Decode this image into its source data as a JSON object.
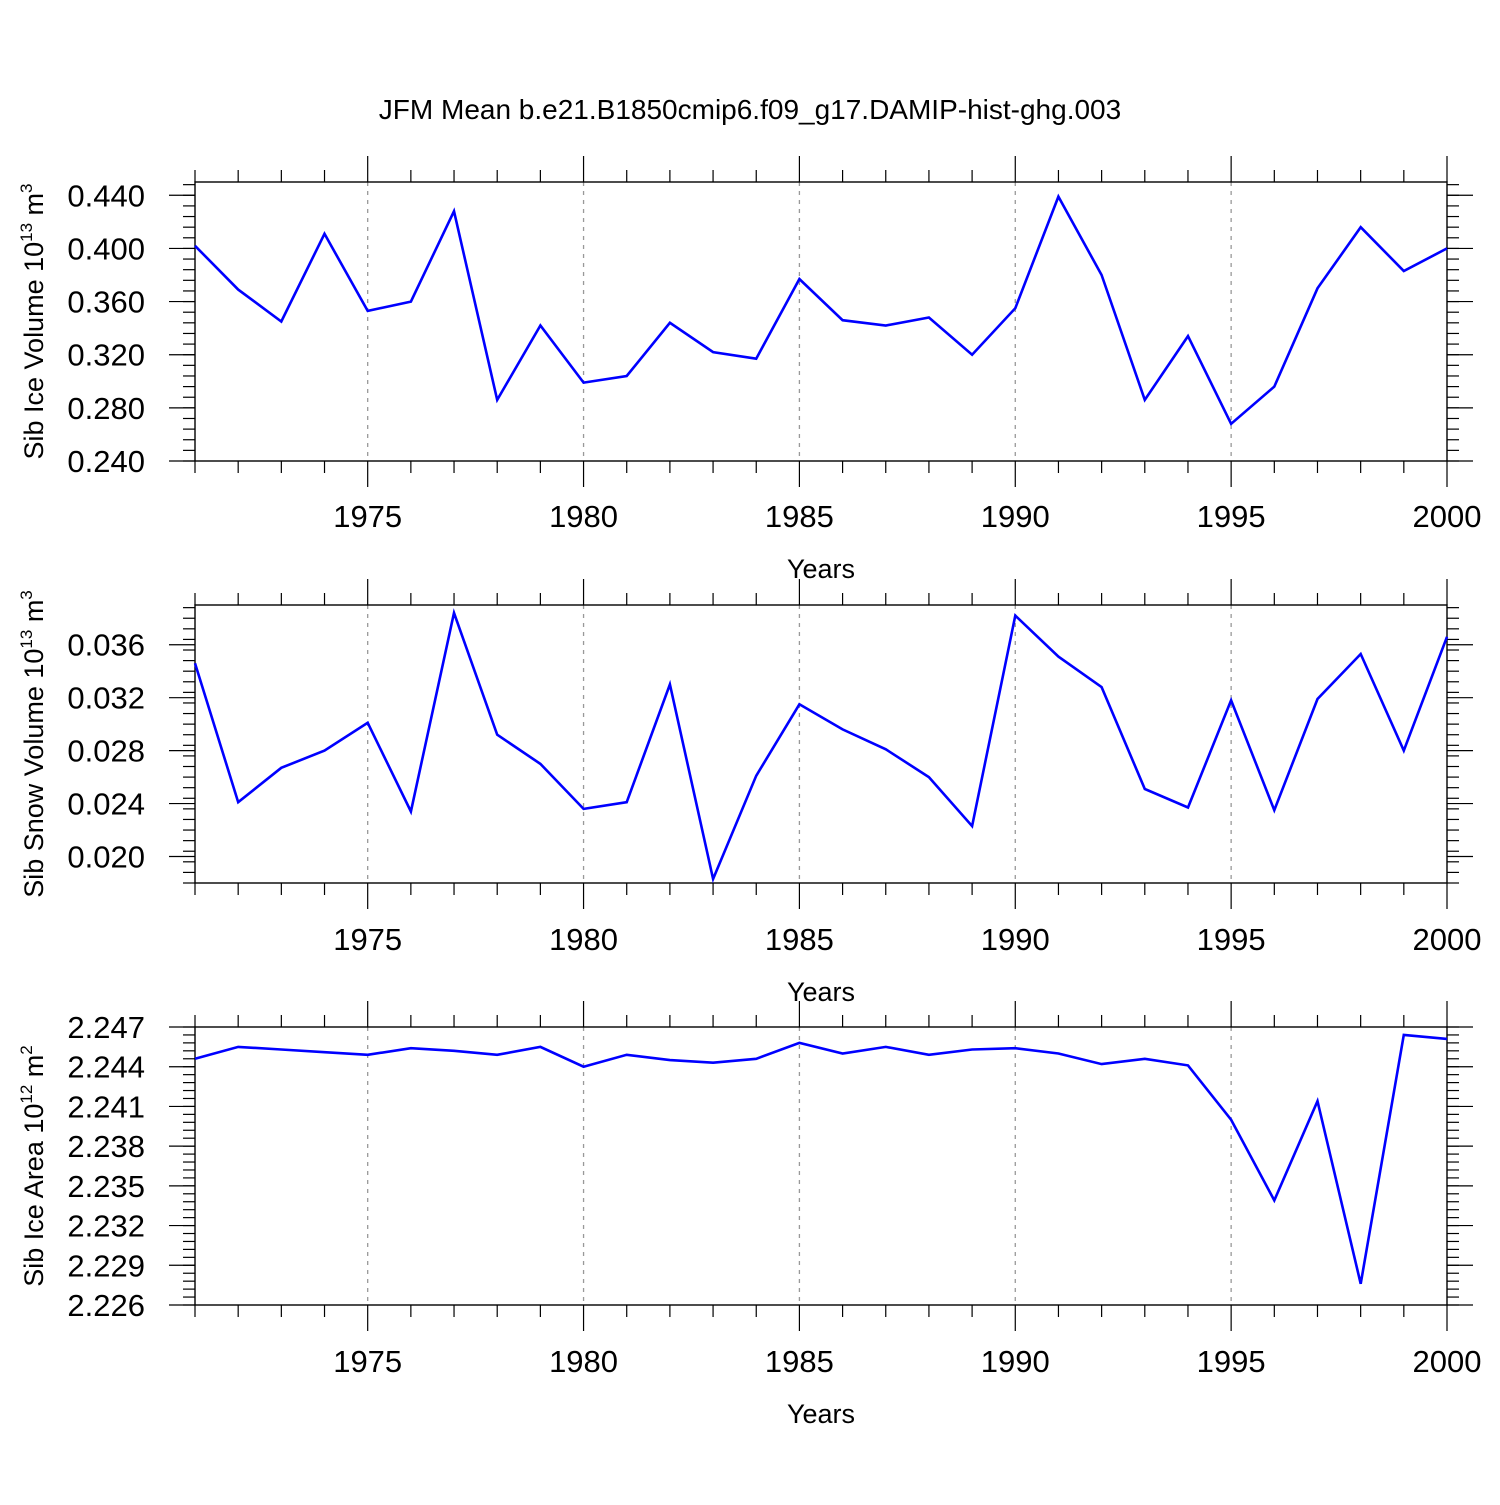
{
  "title": "JFM Mean b.e21.B1850cmip6.f09_g17.DAMIP-hist-ghg.003",
  "colors": {
    "line": "#0000ff",
    "grid": "#999999",
    "axis": "#000000"
  },
  "chart_data": [
    {
      "type": "line",
      "ylabel_main": "Sib Ice Volume 10",
      "ylabel_exp_top": "13",
      "ylabel_unit": " m",
      "ylabel_exp_unit": "3",
      "xlabel": "Years",
      "xlim": [
        1971,
        2000
      ],
      "ylim": [
        0.24,
        0.45
      ],
      "x_major_ticks": [
        1975,
        1980,
        1985,
        1990,
        1995,
        2000
      ],
      "x_major_labels": [
        "1975",
        "1980",
        "1985",
        "1990",
        "1995",
        "2000"
      ],
      "y_major_ticks": [
        0.24,
        0.28,
        0.32,
        0.36,
        0.4,
        0.44
      ],
      "y_major_labels": [
        "0.240",
        "0.280",
        "0.320",
        "0.360",
        "0.400",
        "0.440"
      ],
      "y_minor_step": 0.008,
      "x": [
        1971,
        1972,
        1973,
        1974,
        1975,
        1976,
        1977,
        1978,
        1979,
        1980,
        1981,
        1982,
        1983,
        1984,
        1985,
        1986,
        1987,
        1988,
        1989,
        1990,
        1991,
        1992,
        1993,
        1994,
        1995,
        1996,
        1997,
        1998,
        1999,
        2000
      ],
      "values": [
        0.402,
        0.369,
        0.345,
        0.411,
        0.353,
        0.36,
        0.428,
        0.286,
        0.342,
        0.299,
        0.304,
        0.344,
        0.322,
        0.317,
        0.377,
        0.346,
        0.342,
        0.348,
        0.32,
        0.355,
        0.439,
        0.38,
        0.286,
        0.334,
        0.268,
        0.296,
        0.37,
        0.416,
        0.383,
        0.4
      ]
    },
    {
      "type": "line",
      "ylabel_main": "Sib Snow Volume 10",
      "ylabel_exp_top": "13",
      "ylabel_unit": " m",
      "ylabel_exp_unit": "3",
      "xlabel": "Years",
      "xlim": [
        1971,
        2000
      ],
      "ylim": [
        0.018,
        0.039
      ],
      "x_major_ticks": [
        1975,
        1980,
        1985,
        1990,
        1995,
        2000
      ],
      "x_major_labels": [
        "1975",
        "1980",
        "1985",
        "1990",
        "1995",
        "2000"
      ],
      "y_major_ticks": [
        0.02,
        0.024,
        0.028,
        0.032,
        0.036
      ],
      "y_major_labels": [
        "0.020",
        "0.024",
        "0.028",
        "0.032",
        "0.036"
      ],
      "y_minor_step": 0.0008,
      "x": [
        1971,
        1972,
        1973,
        1974,
        1975,
        1976,
        1977,
        1978,
        1979,
        1980,
        1981,
        1982,
        1983,
        1984,
        1985,
        1986,
        1987,
        1988,
        1989,
        1990,
        1991,
        1992,
        1993,
        1994,
        1995,
        1996,
        1997,
        1998,
        1999,
        2000
      ],
      "values": [
        0.0346,
        0.0241,
        0.0267,
        0.028,
        0.0301,
        0.0234,
        0.0384,
        0.0292,
        0.027,
        0.0236,
        0.0241,
        0.033,
        0.0183,
        0.0261,
        0.0315,
        0.0296,
        0.0281,
        0.026,
        0.0223,
        0.0382,
        0.0351,
        0.0328,
        0.0251,
        0.0237,
        0.0318,
        0.0235,
        0.0319,
        0.0353,
        0.028,
        0.0366
      ]
    },
    {
      "type": "line",
      "ylabel_main": "Sib Ice Area 10",
      "ylabel_exp_top": "12",
      "ylabel_unit": " m",
      "ylabel_exp_unit": "2",
      "xlabel": "Years",
      "xlim": [
        1971,
        2000
      ],
      "ylim": [
        2.226,
        2.247
      ],
      "x_major_ticks": [
        1975,
        1980,
        1985,
        1990,
        1995,
        2000
      ],
      "x_major_labels": [
        "1975",
        "1980",
        "1985",
        "1990",
        "1995",
        "2000"
      ],
      "y_major_ticks": [
        2.226,
        2.229,
        2.232,
        2.235,
        2.238,
        2.241,
        2.244,
        2.247
      ],
      "y_major_labels": [
        "2.226",
        "2.229",
        "2.232",
        "2.235",
        "2.238",
        "2.241",
        "2.244",
        "2.247"
      ],
      "y_minor_step": 0.0006,
      "x": [
        1971,
        1972,
        1973,
        1974,
        1975,
        1976,
        1977,
        1978,
        1979,
        1980,
        1981,
        1982,
        1983,
        1984,
        1985,
        1986,
        1987,
        1988,
        1989,
        1990,
        1991,
        1992,
        1993,
        1994,
        1995,
        1996,
        1997,
        1998,
        1999,
        2000
      ],
      "values": [
        2.2446,
        2.2455,
        2.2453,
        2.2451,
        2.2449,
        2.2454,
        2.2452,
        2.2449,
        2.2455,
        2.244,
        2.2449,
        2.2445,
        2.2443,
        2.2446,
        2.2458,
        2.245,
        2.2455,
        2.2449,
        2.2453,
        2.2454,
        2.245,
        2.2442,
        2.2446,
        2.2441,
        2.24,
        2.2339,
        2.2414,
        2.2276,
        2.2464,
        2.2461
      ]
    }
  ]
}
